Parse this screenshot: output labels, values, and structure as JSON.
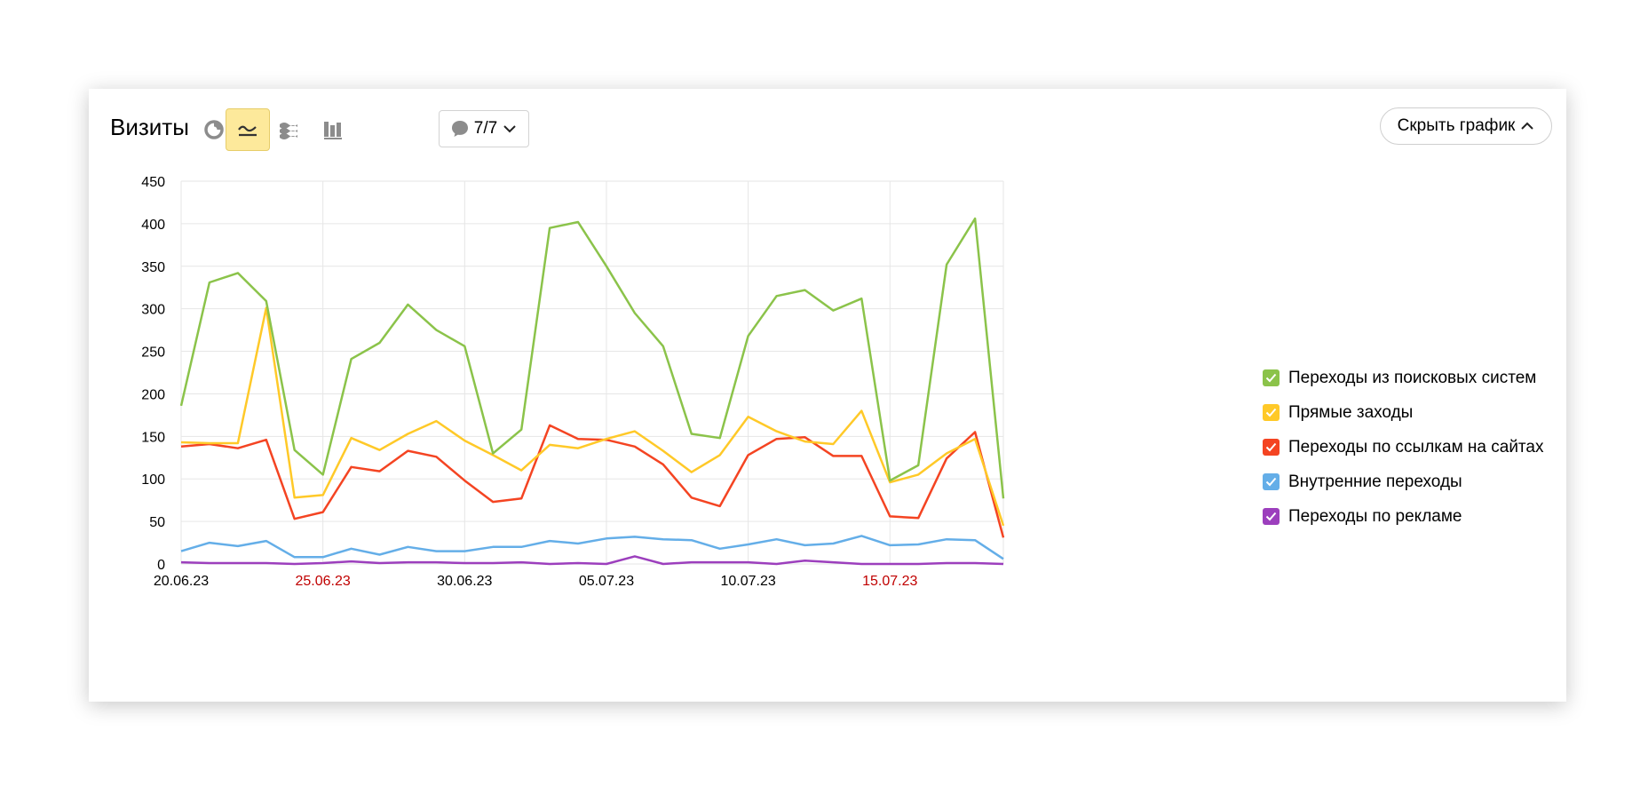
{
  "header": {
    "title": "Визиты",
    "notes_label": "7/7",
    "hide_chart_label": "Скрыть график"
  },
  "colors": {
    "active_button": "#fde99b",
    "icon_gray": "#8c8c8c",
    "weekend_label": "#c00000",
    "grid": "#e6e6e6"
  },
  "chart_data": {
    "type": "line",
    "title": "",
    "xlabel": "",
    "ylabel": "",
    "ylim": [
      0,
      450
    ],
    "yticks": [
      0,
      50,
      100,
      150,
      200,
      250,
      300,
      350,
      400,
      450
    ],
    "grid": true,
    "legend_position": "right",
    "x": [
      "20.06.23",
      "21.06.23",
      "22.06.23",
      "23.06.23",
      "24.06.23",
      "25.06.23",
      "26.06.23",
      "27.06.23",
      "28.06.23",
      "29.06.23",
      "30.06.23",
      "01.07.23",
      "02.07.23",
      "03.07.23",
      "04.07.23",
      "05.07.23",
      "06.07.23",
      "07.07.23",
      "08.07.23",
      "09.07.23",
      "10.07.23",
      "11.07.23",
      "12.07.23",
      "13.07.23",
      "14.07.23",
      "15.07.23",
      "16.07.23",
      "17.07.23",
      "18.07.23",
      "19.07.23"
    ],
    "xtick_labels": [
      {
        "label": "20.06.23",
        "index": 0,
        "weekend": false
      },
      {
        "label": "25.06.23",
        "index": 5,
        "weekend": true
      },
      {
        "label": "30.06.23",
        "index": 10,
        "weekend": false
      },
      {
        "label": "05.07.23",
        "index": 15,
        "weekend": false
      },
      {
        "label": "10.07.23",
        "index": 20,
        "weekend": false
      },
      {
        "label": "15.07.23",
        "index": 25,
        "weekend": true
      }
    ],
    "series": [
      {
        "name": "Переходы из поисковых систем",
        "color": "#8bc34a",
        "values": [
          186,
          331,
          342,
          309,
          134,
          105,
          241,
          260,
          305,
          275,
          256,
          130,
          158,
          395,
          402,
          350,
          295,
          256,
          153,
          148,
          268,
          315,
          322,
          298,
          312,
          98,
          116,
          352,
          406,
          77
        ]
      },
      {
        "name": "Прямые заходы",
        "color": "#ffc928",
        "values": [
          143,
          142,
          142,
          301,
          78,
          81,
          148,
          134,
          153,
          168,
          145,
          128,
          110,
          140,
          136,
          147,
          156,
          133,
          108,
          128,
          173,
          156,
          144,
          141,
          180,
          96,
          105,
          130,
          147,
          45
        ]
      },
      {
        "name": "Переходы по ссылкам на сайтах",
        "color": "#f44422",
        "values": [
          138,
          141,
          136,
          146,
          53,
          61,
          114,
          109,
          133,
          126,
          98,
          73,
          77,
          163,
          147,
          146,
          138,
          117,
          78,
          68,
          128,
          147,
          149,
          127,
          127,
          56,
          54,
          124,
          155,
          31
        ]
      },
      {
        "name": "Внутренние переходы",
        "color": "#64aee8",
        "values": [
          15,
          25,
          21,
          27,
          8,
          8,
          18,
          11,
          20,
          15,
          15,
          20,
          20,
          27,
          24,
          30,
          32,
          29,
          28,
          18,
          23,
          29,
          22,
          24,
          33,
          22,
          23,
          29,
          28,
          6
        ]
      },
      {
        "name": "Переходы по рекламе",
        "color": "#9c3fbd",
        "values": [
          2,
          1,
          1,
          1,
          0,
          1,
          3,
          1,
          2,
          2,
          1,
          1,
          2,
          0,
          1,
          0,
          9,
          0,
          2,
          2,
          2,
          0,
          4,
          2,
          0,
          0,
          0,
          1,
          1,
          0
        ]
      }
    ]
  }
}
